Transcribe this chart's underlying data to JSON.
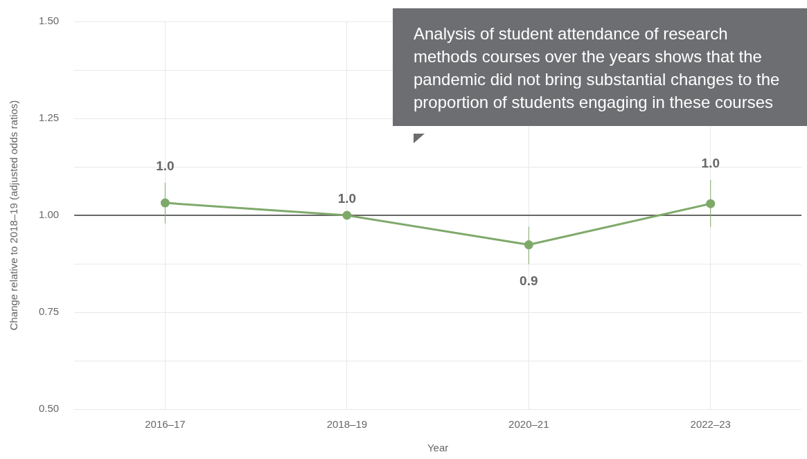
{
  "chart_data": {
    "type": "line",
    "xlabel": "Year",
    "ylabel": "Change relative to 2018–19 (adjusted odds ratios)",
    "categories": [
      "2016–17",
      "2018–19",
      "2020–21",
      "2022–23"
    ],
    "series": [
      {
        "color": "#7fa96a",
        "values": [
          1.032,
          1.0,
          0.924,
          1.03
        ],
        "errors": [
          [
            0.979,
            1.084
          ],
          null,
          [
            0.874,
            0.971
          ],
          [
            0.97,
            1.091
          ]
        ],
        "value_labels": [
          "1.0",
          "1.0",
          "0.9",
          "1.0"
        ]
      }
    ],
    "ylim": [
      0.5,
      1.5
    ],
    "yticks": [
      {
        "value": 0.5,
        "label": "0.50"
      },
      {
        "value": 0.625,
        "label": null
      },
      {
        "value": 0.75,
        "label": "0.75"
      },
      {
        "value": 0.875,
        "label": null
      },
      {
        "value": 1.0,
        "label": "1.00"
      },
      {
        "value": 1.125,
        "label": null
      },
      {
        "value": 1.25,
        "label": "1.25"
      },
      {
        "value": 1.375,
        "label": null
      },
      {
        "value": 1.5,
        "label": "1.50"
      }
    ],
    "ref_lines": [
      {
        "axis": "y",
        "value": 1.0,
        "color": "#666666"
      }
    ],
    "grid": true,
    "legend": false,
    "marker": "circle",
    "line_style": "solid",
    "annotations": [
      "Analysis of student attendance of research methods courses over the years shows that the pandemic did not bring substantial changes to the proportion of students engaging in these courses"
    ]
  }
}
